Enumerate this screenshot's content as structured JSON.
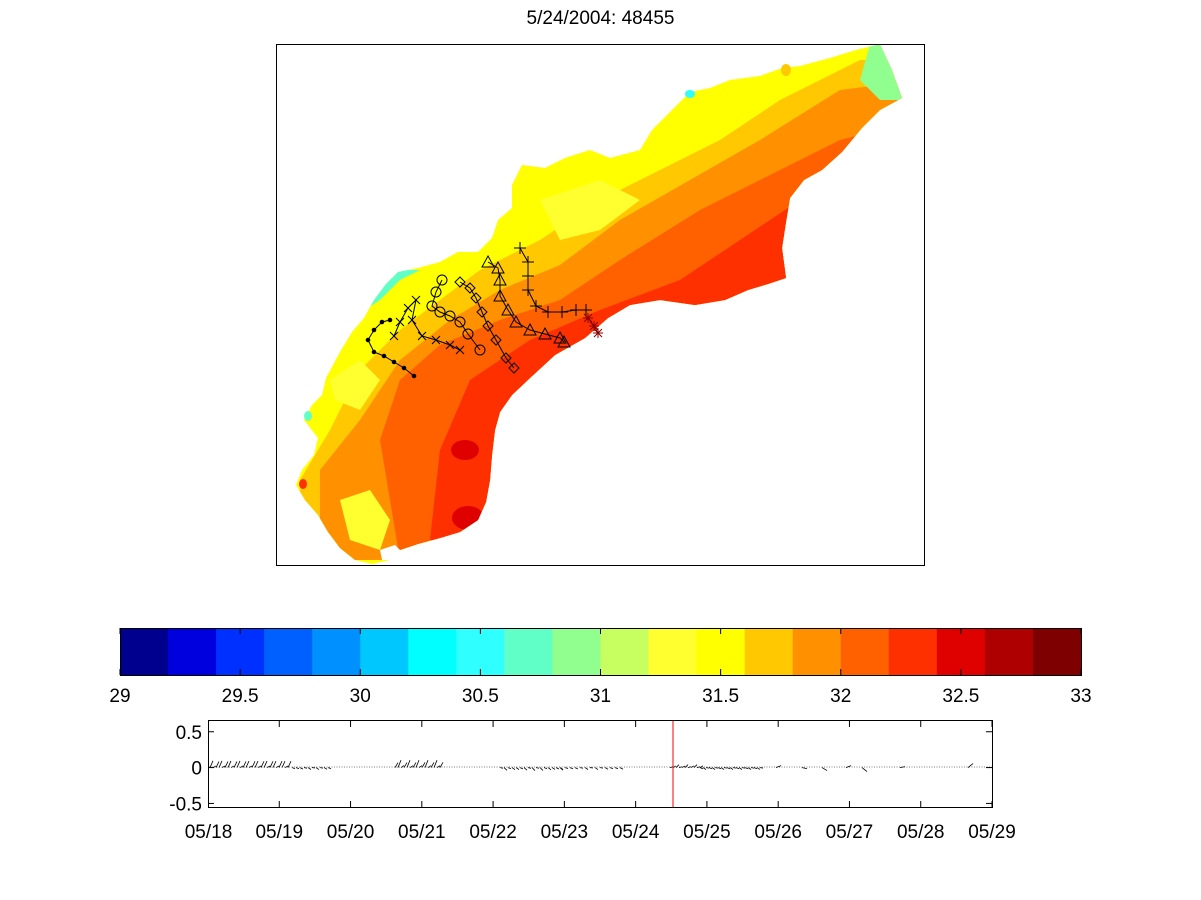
{
  "title": "5/24/2004: 48455",
  "chart_data": [
    {
      "type": "heatmap",
      "title": "5/24/2004: 48455",
      "description_values": {
        "colorbar_range": [
          29,
          33
        ],
        "colorbar_ticks": [
          "29",
          "29.5",
          "30",
          "30.5",
          "31",
          "31.5",
          "32",
          "32.5",
          "33"
        ],
        "colorbar_levels": 20,
        "colormap": [
          "#00008f",
          "#0000df",
          "#0030ff",
          "#0060ff",
          "#0090ff",
          "#00c8ff",
          "#00ffff",
          "#30ffff",
          "#60ffc8",
          "#90ff90",
          "#c8ff60",
          "#ffff30",
          "#ffff00",
          "#ffc800",
          "#ff9000",
          "#ff6000",
          "#ff3000",
          "#df0000",
          "#af0000",
          "#7f0000"
        ]
      },
      "trajectories": [
        {
          "marker": "dot"
        },
        {
          "marker": "x"
        },
        {
          "marker": "circle"
        },
        {
          "marker": "diamond"
        },
        {
          "marker": "triangle"
        },
        {
          "marker": "plus"
        },
        {
          "marker": "asterisk"
        }
      ]
    },
    {
      "type": "line",
      "xlabel": "",
      "ylabel": "",
      "x_ticks": [
        "05/18",
        "05/19",
        "05/20",
        "05/21",
        "05/22",
        "05/23",
        "05/24",
        "05/25",
        "05/26",
        "05/27",
        "05/28",
        "05/29"
      ],
      "y_ticks": [
        "0.5",
        "0",
        "-0.5"
      ],
      "ylim": [
        -0.55,
        0.65
      ],
      "marker_date": "05/24 12:00",
      "marker_color": "#ff0000"
    }
  ]
}
